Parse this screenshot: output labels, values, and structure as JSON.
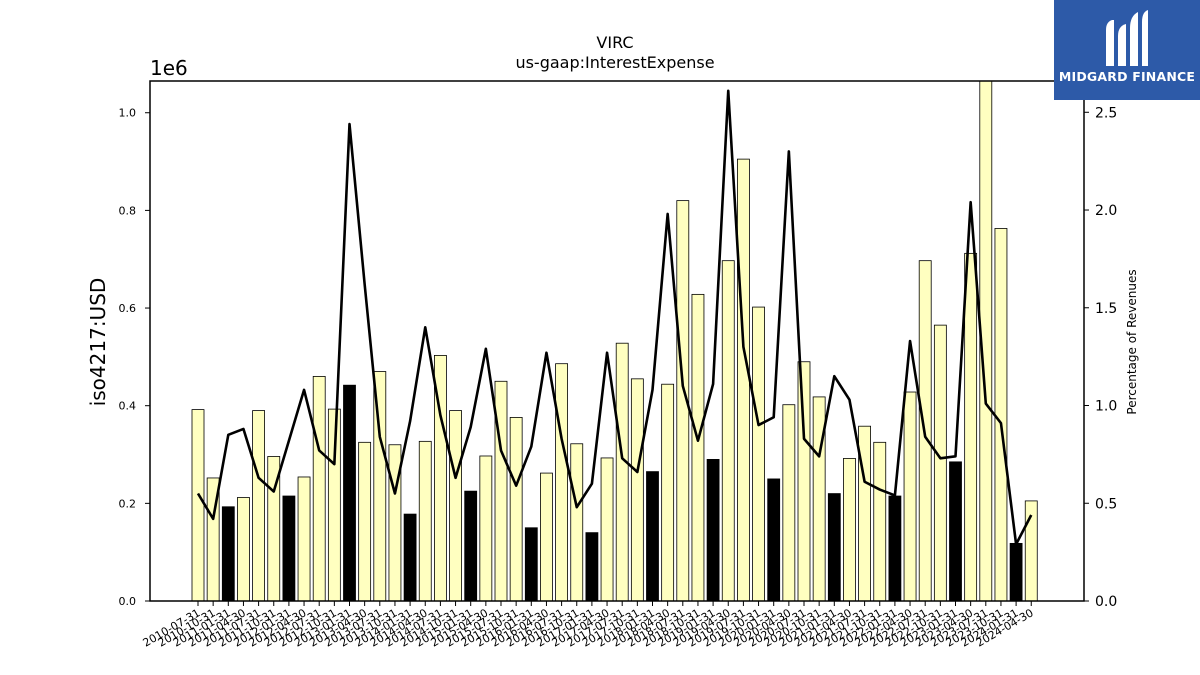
{
  "chart_data": {
    "type": "bar",
    "title": "VIRC",
    "subtitle": "us-gaap:InterestExpense",
    "ylabel": "iso4217:USD",
    "y2label": "Percentage of Revenues",
    "y_offset_text": "1e6",
    "ylim": [
      0,
      1065000
    ],
    "y2lim": [
      0,
      2.66
    ],
    "yticks": [
      0.0,
      0.2,
      0.4,
      0.6,
      0.8,
      1.0
    ],
    "y2ticks": [
      0.0,
      0.5,
      1.0,
      1.5,
      2.0,
      2.5
    ],
    "bar_colors": {
      "quarter": "#ffffc0",
      "annual": "#000000"
    },
    "line_color": "#000000",
    "categories": [
      "2010-07-31",
      "2010-10-31",
      "2011-01-31",
      "2011-04-30",
      "2011-07-31",
      "2011-10-31",
      "2012-01-31",
      "2012-04-30",
      "2012-07-31",
      "2012-10-31",
      "2013-01-31",
      "2013-04-30",
      "2013-07-31",
      "2013-10-31",
      "2014-01-31",
      "2014-04-30",
      "2014-07-31",
      "2014-10-31",
      "2015-01-31",
      "2015-04-30",
      "2015-07-31",
      "2015-10-31",
      "2016-01-31",
      "2016-04-30",
      "2016-07-31",
      "2016-10-31",
      "2017-01-31",
      "2017-04-30",
      "2017-07-31",
      "2017-10-31",
      "2018-01-31",
      "2018-04-30",
      "2018-07-31",
      "2018-10-31",
      "2019-01-31",
      "2019-04-30",
      "2019-07-31",
      "2019-10-31",
      "2020-01-31",
      "2020-04-30",
      "2020-07-31",
      "2020-10-31",
      "2021-01-31",
      "2021-04-30",
      "2021-07-31",
      "2021-10-31",
      "2022-01-31",
      "2022-04-30",
      "2022-07-31",
      "2022-10-31",
      "2023-01-31",
      "2023-04-30",
      "2023-07-31",
      "2023-10-31",
      "2024-01-31",
      "2024-04-30"
    ],
    "values": [
      392000,
      252000,
      193000,
      212000,
      390000,
      296000,
      215000,
      254000,
      460000,
      393000,
      442000,
      325000,
      470000,
      320000,
      178000,
      327000,
      503000,
      390000,
      225000,
      297000,
      450000,
      376000,
      150000,
      262000,
      486000,
      322000,
      140000,
      293000,
      528000,
      455000,
      265000,
      444000,
      820000,
      628000,
      290000,
      697000,
      905000,
      602000,
      250000,
      402000,
      490000,
      418000,
      220000,
      292000,
      358000,
      325000,
      215000,
      428000,
      697000,
      565000,
      285000,
      712000,
      1065000,
      763000,
      118000,
      205000
    ],
    "annual_flags": [
      0,
      0,
      1,
      0,
      0,
      0,
      1,
      0,
      0,
      0,
      1,
      0,
      0,
      0,
      1,
      0,
      0,
      0,
      1,
      0,
      0,
      0,
      1,
      0,
      0,
      0,
      1,
      0,
      0,
      0,
      1,
      0,
      0,
      0,
      1,
      0,
      0,
      0,
      1,
      0,
      0,
      0,
      1,
      0,
      0,
      0,
      1,
      0,
      0,
      0,
      1,
      0,
      0,
      0,
      1,
      0
    ],
    "line_values": [
      0.55,
      0.42,
      0.85,
      0.88,
      0.63,
      0.56,
      0.82,
      1.08,
      0.77,
      0.7,
      2.44,
      1.62,
      0.84,
      0.55,
      0.92,
      1.4,
      0.95,
      0.63,
      0.89,
      1.29,
      0.77,
      0.59,
      0.79,
      1.27,
      0.83,
      0.48,
      0.6,
      1.27,
      0.73,
      0.66,
      1.08,
      1.98,
      1.1,
      0.82,
      1.11,
      2.61,
      1.3,
      0.9,
      0.94,
      2.3,
      0.83,
      0.74,
      1.15,
      1.03,
      0.61,
      0.57,
      0.54,
      1.33,
      0.84,
      0.73,
      0.74,
      2.04,
      1.01,
      0.91,
      0.29,
      0.44
    ],
    "legend": "none",
    "grid": false
  },
  "logo": {
    "name": "MIDGARD FINANCE"
  }
}
